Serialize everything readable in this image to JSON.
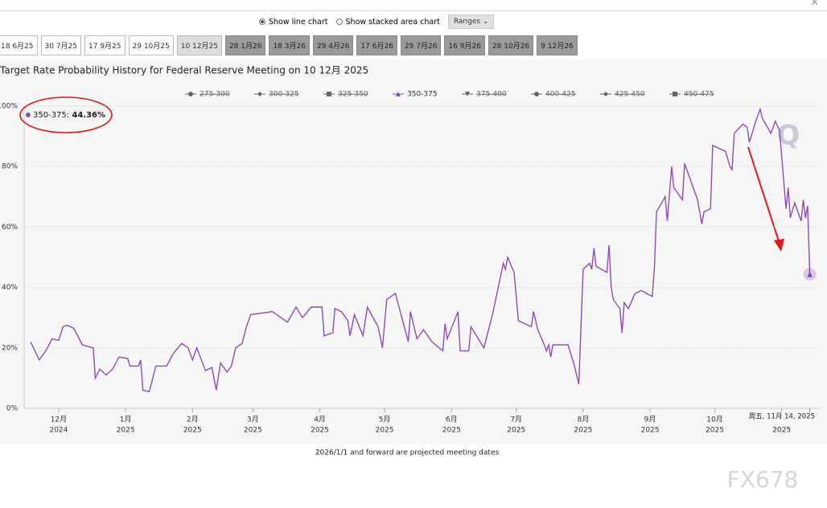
{
  "ui": {
    "chart_modes": [
      "Show line chart",
      "Show stacked area chart"
    ],
    "ranges": "Ranges",
    "tabs": [
      "18 6月25",
      "30 7月25",
      "17 9月25",
      "29 10月25",
      "10 12月25",
      "28 1月26",
      "18 3月26",
      "29 4月26",
      "17 6月26",
      "29 7月26",
      "16 9月26",
      "28 10月26",
      "9 12月26"
    ],
    "active_tab": 4,
    "footer": "2026/1/1 and forward are projected meeting dates",
    "logo": "Q",
    "watermark": "FX678"
  },
  "chart_data": {
    "type": "line",
    "title": "Target Rate Probability History for Federal Reserve Meeting on 10 12月 2025",
    "x": [
      "2024-11-18",
      "2024-11-22",
      "2024-11-25",
      "2024-11-28",
      "2024-12-01",
      "2024-12-03",
      "2024-12-05",
      "2024-12-08",
      "2024-12-12",
      "2024-12-17",
      "2024-12-18",
      "2024-12-20",
      "2024-12-23",
      "2024-12-26",
      "2024-12-29",
      "2025-01-02",
      "2025-01-03",
      "2025-01-07",
      "2025-01-08",
      "2025-01-09",
      "2025-01-12",
      "2025-01-15",
      "2025-01-20",
      "2025-01-23",
      "2025-01-27",
      "2025-01-30",
      "2025-02-01",
      "2025-02-03",
      "2025-02-07",
      "2025-02-10",
      "2025-02-12",
      "2025-02-14",
      "2025-02-17",
      "2025-02-19",
      "2025-02-21",
      "2025-02-24",
      "2025-02-26",
      "2025-02-28",
      "2025-03-05",
      "2025-03-10",
      "2025-03-14",
      "2025-03-17",
      "2025-03-21",
      "2025-03-24",
      "2025-03-28",
      "2025-04-02",
      "2025-04-03",
      "2025-04-07",
      "2025-04-08",
      "2025-04-11",
      "2025-04-14",
      "2025-04-15",
      "2025-04-17",
      "2025-04-21",
      "2025-04-23",
      "2025-04-28",
      "2025-04-30",
      "2025-05-02",
      "2025-05-06",
      "2025-05-09",
      "2025-05-12",
      "2025-05-13",
      "2025-05-16",
      "2025-05-19",
      "2025-05-23",
      "2025-05-28",
      "2025-05-29",
      "2025-05-30",
      "2025-06-04",
      "2025-06-05",
      "2025-06-09",
      "2025-06-10",
      "2025-06-16",
      "2025-06-20",
      "2025-06-25",
      "2025-06-26",
      "2025-06-27",
      "2025-06-30",
      "2025-07-02",
      "2025-07-08",
      "2025-07-09",
      "2025-07-11",
      "2025-07-14",
      "2025-07-15",
      "2025-07-16",
      "2025-07-17",
      "2025-07-18",
      "2025-07-25",
      "2025-07-28",
      "2025-07-30",
      "2025-08-01",
      "2025-08-04",
      "2025-08-05",
      "2025-08-06",
      "2025-08-07",
      "2025-08-12",
      "2025-08-13",
      "2025-08-14",
      "2025-08-15",
      "2025-08-18",
      "2025-08-19",
      "2025-08-20",
      "2025-08-22",
      "2025-08-25",
      "2025-08-28",
      "2025-09-02",
      "2025-09-03",
      "2025-09-04",
      "2025-09-08",
      "2025-09-09",
      "2025-09-11",
      "2025-09-12",
      "2025-09-16",
      "2025-09-17",
      "2025-09-22",
      "2025-09-23",
      "2025-09-25",
      "2025-09-26",
      "2025-09-29",
      "2025-09-30",
      "2025-10-06",
      "2025-10-08",
      "2025-10-09",
      "2025-10-10",
      "2025-10-14",
      "2025-10-16",
      "2025-10-17",
      "2025-10-20",
      "2025-10-22",
      "2025-10-23",
      "2025-10-27",
      "2025-10-29",
      "2025-10-31",
      "2025-11-03",
      "2025-11-04",
      "2025-11-05",
      "2025-11-07",
      "2025-11-10",
      "2025-11-11",
      "2025-11-12",
      "2025-11-13",
      "2025-11-14"
    ],
    "series": [
      {
        "name": "275-300",
        "visible": false,
        "marker": "circle"
      },
      {
        "name": "300-325",
        "visible": false,
        "marker": "diamond"
      },
      {
        "name": "325-350",
        "visible": false,
        "marker": "square"
      },
      {
        "name": "350-375",
        "visible": true,
        "marker": "triangle",
        "color": "#8e4cb5",
        "values": [
          22,
          16,
          19,
          23,
          22.5,
          27,
          27.5,
          26.5,
          21,
          20,
          10,
          13,
          11,
          13,
          17,
          16.5,
          14,
          14,
          16,
          6,
          5.5,
          14,
          14,
          18,
          21.5,
          20,
          16,
          20,
          12.5,
          13.5,
          6,
          15,
          12,
          14,
          20,
          21.5,
          27,
          31,
          31.5,
          32,
          30,
          28.5,
          33.5,
          30,
          33.5,
          33.5,
          24,
          25,
          33,
          32,
          29,
          24,
          31,
          24,
          33.5,
          27,
          20,
          36,
          38,
          30,
          22,
          32,
          23,
          26,
          22,
          19,
          28,
          23,
          32,
          19,
          19,
          27,
          20,
          31,
          48,
          46,
          50,
          45,
          29,
          27,
          32,
          26,
          21,
          19,
          21,
          17,
          21,
          21,
          14,
          8,
          46,
          48,
          46,
          53,
          47,
          45,
          54,
          40,
          36,
          33,
          25,
          35,
          33,
          38,
          39,
          37,
          46,
          65,
          70,
          62,
          80,
          73,
          69,
          81,
          71,
          69,
          61,
          65,
          66,
          87,
          85,
          80,
          79,
          91,
          94,
          93,
          88,
          95,
          99,
          96,
          91,
          95,
          92,
          66,
          73,
          63,
          68,
          62,
          69,
          63,
          67,
          44.36
        ]
      },
      {
        "name": "375-400",
        "visible": false,
        "marker": "triangle-down"
      },
      {
        "name": "400-425",
        "visible": false,
        "marker": "circle"
      },
      {
        "name": "425-450",
        "visible": false,
        "marker": "diamond"
      },
      {
        "name": "450-475",
        "visible": false,
        "marker": "square"
      }
    ],
    "tooltip": {
      "x": "2025-11-14",
      "date_label": "周五, 11月 14, 2025",
      "value_label": "44.36%"
    },
    "xlim": [
      "2024-11-15",
      "2025-11-19"
    ],
    "xticks": [
      {
        "value": "2024-12-01",
        "label": "12月",
        "year": "2024"
      },
      {
        "value": "2025-01-01",
        "label": "1月",
        "year": "2025"
      },
      {
        "value": "2025-02-01",
        "label": "2月",
        "year": "2025"
      },
      {
        "value": "2025-03-01",
        "label": "3月",
        "year": "2025"
      },
      {
        "value": "2025-04-01",
        "label": "4月",
        "year": "2025"
      },
      {
        "value": "2025-05-01",
        "label": "5月",
        "year": "2025"
      },
      {
        "value": "2025-06-01",
        "label": "6月",
        "year": "2025"
      },
      {
        "value": "2025-07-01",
        "label": "7月",
        "year": "2025"
      },
      {
        "value": "2025-08-01",
        "label": "8月",
        "year": "2025"
      },
      {
        "value": "2025-09-01",
        "label": "9月",
        "year": "2025"
      },
      {
        "value": "2025-10-01",
        "label": "10月",
        "year": "2025"
      },
      {
        "value": "2025-11-01",
        "year": "2025"
      }
    ],
    "ylim": [
      0,
      100
    ],
    "yticks": [
      {
        "value": 0,
        "label": "0%"
      },
      {
        "value": 20,
        "label": "20%"
      },
      {
        "value": 40,
        "label": "40%"
      },
      {
        "value": 60,
        "label": "60%"
      },
      {
        "value": 80,
        "label": "80%"
      },
      {
        "value": 100,
        "label": "100%"
      }
    ],
    "grid": true
  }
}
